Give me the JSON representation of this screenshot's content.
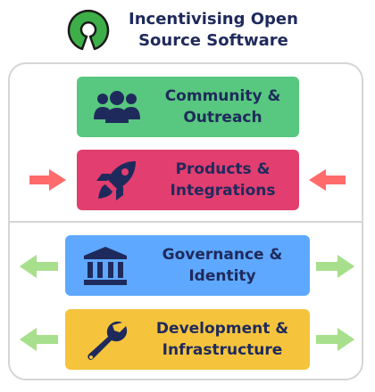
{
  "header": {
    "title_line1": "Incentivising Open",
    "title_line2": "Source Software",
    "logo_icon": "open-source-initiative-logo"
  },
  "colors": {
    "title_text": "#1f2a5c",
    "logo_green": "#3dae48",
    "community": "#58c77f",
    "products": "#e23e70",
    "governance": "#5ea8ff",
    "development": "#f5c43c",
    "inward_arrow": "#ff6b6b",
    "outward_arrow": "#a8df8c",
    "panel_border": "#d5d5d5"
  },
  "boxes": {
    "community": {
      "line1": "Community &",
      "line2": "Outreach",
      "icon": "people-icon"
    },
    "products": {
      "line1": "Products &",
      "line2": "Integrations",
      "icon": "rocket-icon"
    },
    "governance": {
      "line1": "Governance &",
      "line2": "Identity",
      "icon": "institution-icon"
    },
    "development": {
      "line1": "Development &",
      "line2": "Infrastructure",
      "icon": "wrench-icon"
    }
  },
  "arrows": {
    "top_section": "inward",
    "bottom_section": "outward"
  }
}
